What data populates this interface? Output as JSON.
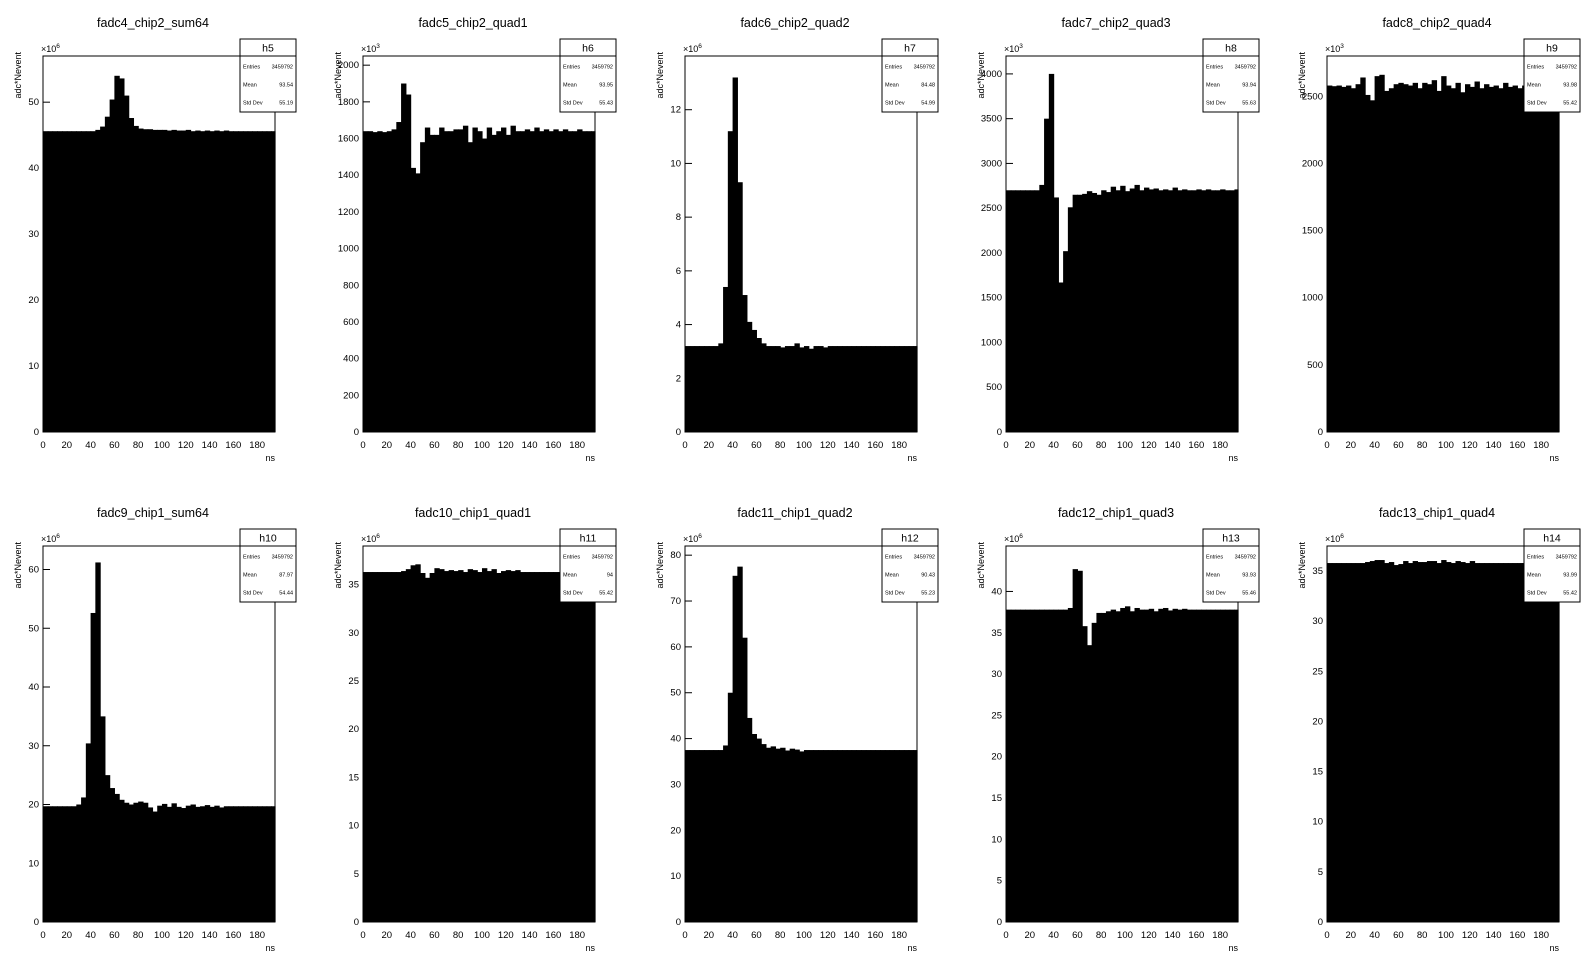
{
  "chart_data": [
    {
      "type": "bar",
      "hist": "h5",
      "title": "fadc4_chip2_sum64",
      "xlabel": "ns",
      "ylabel": "adc*Nevent",
      "xlim": [
        0,
        195
      ],
      "ylim": [
        0,
        57
      ],
      "yticks": [
        0,
        10,
        20,
        30,
        40,
        50
      ],
      "exponent": "6",
      "stats": {
        "entries": "3459792",
        "mean": "93.54",
        "stddev": "55.19"
      },
      "bin_width": 4,
      "values": [
        45.6,
        45.6,
        45.6,
        45.6,
        45.6,
        45.6,
        45.6,
        45.6,
        45.6,
        45.6,
        45.6,
        45.8,
        46.3,
        47.8,
        50.4,
        54.0,
        53.6,
        51.0,
        47.6,
        46.4,
        46.0,
        45.9,
        45.9,
        45.8,
        45.8,
        45.8,
        45.7,
        45.8,
        45.7,
        45.7,
        45.8,
        45.6,
        45.7,
        45.6,
        45.7,
        45.6,
        45.7,
        45.6,
        45.7,
        45.6,
        45.6,
        45.6,
        45.6,
        45.6,
        45.6,
        45.6,
        45.6,
        45.6,
        45.6
      ]
    },
    {
      "type": "bar",
      "hist": "h6",
      "title": "fadc5_chip2_quad1",
      "xlabel": "ns",
      "ylabel": "adc*Nevent",
      "xlim": [
        0,
        195
      ],
      "ylim": [
        0,
        2050
      ],
      "yticks": [
        0,
        200,
        400,
        600,
        800,
        1000,
        1200,
        1400,
        1600,
        1800,
        2000
      ],
      "exponent": "3",
      "stats": {
        "entries": "3459792",
        "mean": "93.95",
        "stddev": "55.43"
      },
      "bin_width": 4,
      "values": [
        1640,
        1640,
        1635,
        1640,
        1635,
        1640,
        1650,
        1690,
        1900,
        1840,
        1440,
        1410,
        1580,
        1660,
        1620,
        1620,
        1660,
        1640,
        1640,
        1650,
        1650,
        1670,
        1580,
        1660,
        1640,
        1600,
        1660,
        1620,
        1640,
        1660,
        1620,
        1670,
        1640,
        1640,
        1650,
        1640,
        1660,
        1640,
        1650,
        1640,
        1650,
        1640,
        1650,
        1640,
        1640,
        1650,
        1640,
        1640,
        1640
      ]
    },
    {
      "type": "bar",
      "hist": "h7",
      "title": "fadc6_chip2_quad2",
      "xlabel": "ns",
      "ylabel": "adc*Nevent",
      "xlim": [
        0,
        195
      ],
      "ylim": [
        0,
        14
      ],
      "yticks": [
        0,
        2,
        4,
        6,
        8,
        10,
        12
      ],
      "exponent": "6",
      "stats": {
        "entries": "3459792",
        "mean": "84.48",
        "stddev": "54.99"
      },
      "bin_width": 4,
      "values": [
        3.2,
        3.2,
        3.2,
        3.2,
        3.2,
        3.2,
        3.2,
        3.3,
        5.4,
        11.2,
        13.2,
        9.3,
        5.1,
        4.1,
        3.8,
        3.5,
        3.3,
        3.2,
        3.2,
        3.2,
        3.15,
        3.2,
        3.2,
        3.3,
        3.15,
        3.2,
        3.1,
        3.2,
        3.2,
        3.15,
        3.2,
        3.2,
        3.2,
        3.2,
        3.2,
        3.2,
        3.2,
        3.2,
        3.2,
        3.2,
        3.2,
        3.2,
        3.2,
        3.2,
        3.2,
        3.2,
        3.2,
        3.2,
        3.2
      ]
    },
    {
      "type": "bar",
      "hist": "h8",
      "title": "fadc7_chip2_quad3",
      "xlabel": "ns",
      "ylabel": "adc*Nevent",
      "xlim": [
        0,
        195
      ],
      "ylim": [
        0,
        4200
      ],
      "yticks": [
        0,
        500,
        1000,
        1500,
        2000,
        2500,
        3000,
        3500,
        4000
      ],
      "exponent": "3",
      "stats": {
        "entries": "3459792",
        "mean": "93.94",
        "stddev": "55.63"
      },
      "bin_width": 4,
      "values": [
        2700,
        2700,
        2700,
        2700,
        2700,
        2700,
        2700,
        2760,
        3500,
        4000,
        2620,
        1670,
        2020,
        2510,
        2650,
        2650,
        2660,
        2690,
        2670,
        2650,
        2700,
        2680,
        2740,
        2700,
        2750,
        2690,
        2720,
        2760,
        2700,
        2730,
        2710,
        2720,
        2700,
        2710,
        2700,
        2730,
        2700,
        2710,
        2700,
        2700,
        2710,
        2700,
        2710,
        2700,
        2700,
        2710,
        2700,
        2700,
        2710
      ]
    },
    {
      "type": "bar",
      "hist": "h9",
      "title": "fadc8_chip2_quad4",
      "xlabel": "ns",
      "ylabel": "adc*Nevent",
      "xlim": [
        0,
        195
      ],
      "ylim": [
        0,
        2800
      ],
      "yticks": [
        0,
        500,
        1000,
        1500,
        2000,
        2500
      ],
      "exponent": "3",
      "stats": {
        "entries": "3459792",
        "mean": "93.98",
        "stddev": "55.42"
      },
      "bin_width": 4,
      "values": [
        2580,
        2575,
        2580,
        2570,
        2580,
        2560,
        2590,
        2640,
        2510,
        2470,
        2650,
        2660,
        2540,
        2560,
        2590,
        2600,
        2590,
        2580,
        2600,
        2560,
        2600,
        2590,
        2620,
        2540,
        2650,
        2580,
        2560,
        2600,
        2530,
        2590,
        2570,
        2610,
        2560,
        2590,
        2570,
        2580,
        2560,
        2600,
        2570,
        2580,
        2560,
        2580,
        2580,
        2580,
        2570,
        2580,
        2580,
        2580,
        2580
      ]
    },
    {
      "type": "bar",
      "hist": "h10",
      "title": "fadc9_chip1_sum64",
      "xlabel": "ns",
      "ylabel": "adc*Nevent",
      "xlim": [
        0,
        195
      ],
      "ylim": [
        0,
        64
      ],
      "yticks": [
        0,
        10,
        20,
        30,
        40,
        50,
        60
      ],
      "exponent": "6",
      "stats": {
        "entries": "3459792",
        "mean": "87.97",
        "stddev": "54.44"
      },
      "bin_width": 4,
      "values": [
        19.7,
        19.7,
        19.7,
        19.7,
        19.7,
        19.7,
        19.7,
        20.0,
        21.2,
        30.4,
        52.6,
        61.2,
        35.0,
        25.0,
        22.8,
        21.8,
        20.8,
        20.3,
        20.0,
        20.3,
        20.5,
        20.3,
        19.5,
        18.8,
        19.8,
        20.1,
        19.6,
        20.2,
        19.6,
        19.4,
        19.8,
        20.0,
        19.6,
        19.7,
        19.9,
        19.6,
        19.8,
        19.5,
        19.7,
        19.7,
        19.7,
        19.7,
        19.7,
        19.7,
        19.7,
        19.7,
        19.7,
        19.7,
        19.7
      ]
    },
    {
      "type": "bar",
      "hist": "h11",
      "title": "fadc10_chip1_quad1",
      "xlabel": "ns",
      "ylabel": "adc*Nevent",
      "xlim": [
        0,
        195
      ],
      "ylim": [
        0,
        39
      ],
      "yticks": [
        0,
        5,
        10,
        15,
        20,
        25,
        30,
        35
      ],
      "exponent": "6",
      "stats": {
        "entries": "3459792",
        "mean": "94",
        "stddev": "55.42"
      },
      "bin_width": 4,
      "values": [
        36.3,
        36.3,
        36.3,
        36.3,
        36.3,
        36.3,
        36.3,
        36.3,
        36.4,
        36.6,
        37.0,
        37.1,
        36.2,
        35.7,
        36.2,
        36.7,
        36.6,
        36.4,
        36.5,
        36.4,
        36.5,
        36.3,
        36.6,
        36.5,
        36.3,
        36.7,
        36.4,
        36.6,
        36.2,
        36.4,
        36.5,
        36.4,
        36.5,
        36.3,
        36.3,
        36.3,
        36.3,
        36.3,
        36.3,
        36.3,
        36.3,
        36.3,
        36.3,
        36.3,
        36.3,
        36.3,
        36.3,
        36.3,
        36.3
      ]
    },
    {
      "type": "bar",
      "hist": "h12",
      "title": "fadc11_chip1_quad2",
      "xlabel": "ns",
      "ylabel": "adc*Nevent",
      "xlim": [
        0,
        195
      ],
      "ylim": [
        0,
        82
      ],
      "yticks": [
        0,
        10,
        20,
        30,
        40,
        50,
        60,
        70,
        80
      ],
      "exponent": "6",
      "stats": {
        "entries": "3459792",
        "mean": "90.43",
        "stddev": "55.23"
      },
      "bin_width": 4,
      "values": [
        37.5,
        37.5,
        37.5,
        37.5,
        37.5,
        37.5,
        37.5,
        37.5,
        38.5,
        50.0,
        75.5,
        77.5,
        62.0,
        44.5,
        41.0,
        40.0,
        38.8,
        38.0,
        38.3,
        37.8,
        38.0,
        37.4,
        37.8,
        37.6,
        37.2,
        37.5,
        37.5,
        37.5,
        37.5,
        37.5,
        37.5,
        37.5,
        37.5,
        37.5,
        37.5,
        37.5,
        37.5,
        37.5,
        37.5,
        37.5,
        37.5,
        37.5,
        37.5,
        37.5,
        37.5,
        37.5,
        37.5,
        37.5,
        37.5
      ]
    },
    {
      "type": "bar",
      "hist": "h13",
      "title": "fadc12_chip1_quad3",
      "xlabel": "ns",
      "ylabel": "adc*Nevent",
      "xlim": [
        0,
        195
      ],
      "ylim": [
        0,
        45.5
      ],
      "yticks": [
        0,
        5,
        10,
        15,
        20,
        25,
        30,
        35,
        40
      ],
      "exponent": "6",
      "stats": {
        "entries": "3459792",
        "mean": "93.93",
        "stddev": "55.46"
      },
      "bin_width": 4,
      "values": [
        37.8,
        37.8,
        37.8,
        37.8,
        37.8,
        37.8,
        37.8,
        37.8,
        37.8,
        37.8,
        37.8,
        37.8,
        37.8,
        38.0,
        42.7,
        42.5,
        35.8,
        33.5,
        36.2,
        37.4,
        37.4,
        37.6,
        37.8,
        37.6,
        38.0,
        38.2,
        37.6,
        38.0,
        37.8,
        37.8,
        37.9,
        37.6,
        37.9,
        38.0,
        37.7,
        37.9,
        37.8,
        37.9,
        37.8,
        37.8,
        37.8,
        37.8,
        37.8,
        37.8,
        37.8,
        37.8,
        37.8,
        37.8,
        37.8
      ]
    },
    {
      "type": "bar",
      "hist": "h14",
      "title": "fadc13_chip1_quad4",
      "xlabel": "ns",
      "ylabel": "adc*Nevent",
      "xlim": [
        0,
        195
      ],
      "ylim": [
        0,
        37.5
      ],
      "yticks": [
        0,
        5,
        10,
        15,
        20,
        25,
        30,
        35
      ],
      "exponent": "6",
      "stats": {
        "entries": "3459792",
        "mean": "93.99",
        "stddev": "55.42"
      },
      "bin_width": 4,
      "values": [
        35.8,
        35.8,
        35.8,
        35.8,
        35.8,
        35.8,
        35.8,
        35.8,
        35.9,
        36.0,
        36.1,
        36.1,
        35.8,
        35.9,
        35.6,
        35.7,
        36.0,
        35.8,
        36.0,
        35.9,
        35.9,
        36.0,
        36.0,
        35.8,
        36.1,
        35.9,
        35.8,
        36.0,
        35.9,
        35.8,
        36.0,
        35.8,
        35.8,
        35.8,
        35.8,
        35.8,
        35.8,
        35.8,
        35.8,
        35.8,
        35.8,
        35.8,
        35.8,
        35.8,
        35.8,
        35.8,
        35.8,
        35.8,
        35.8
      ]
    }
  ],
  "stats_labels": {
    "entries": "Entries",
    "mean": "Mean",
    "stddev": "Std Dev"
  },
  "xticks": [
    0,
    20,
    40,
    60,
    80,
    100,
    120,
    140,
    160,
    180
  ],
  "multiplier_prefix": "×10",
  "colors": {
    "fill": "#000000",
    "background": "#ffffff",
    "frame": "#000000"
  }
}
